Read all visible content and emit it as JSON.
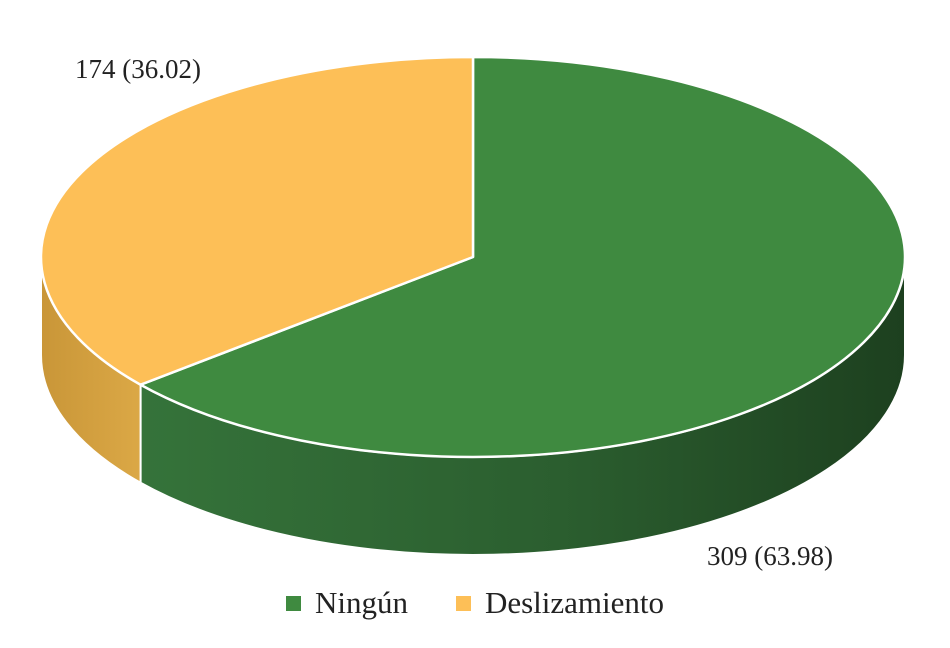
{
  "chart_data": {
    "type": "pie",
    "style": "3d",
    "slices": [
      {
        "name": "Ningún",
        "value": 309,
        "percent": 63.98,
        "label": "309 (63.98)",
        "color": "#3f8a40"
      },
      {
        "name": "Deslizamiento",
        "value": 174,
        "percent": 36.02,
        "label": "174 (36.02)",
        "color": "#fdbf57"
      }
    ],
    "legend": {
      "position": "bottom"
    }
  }
}
